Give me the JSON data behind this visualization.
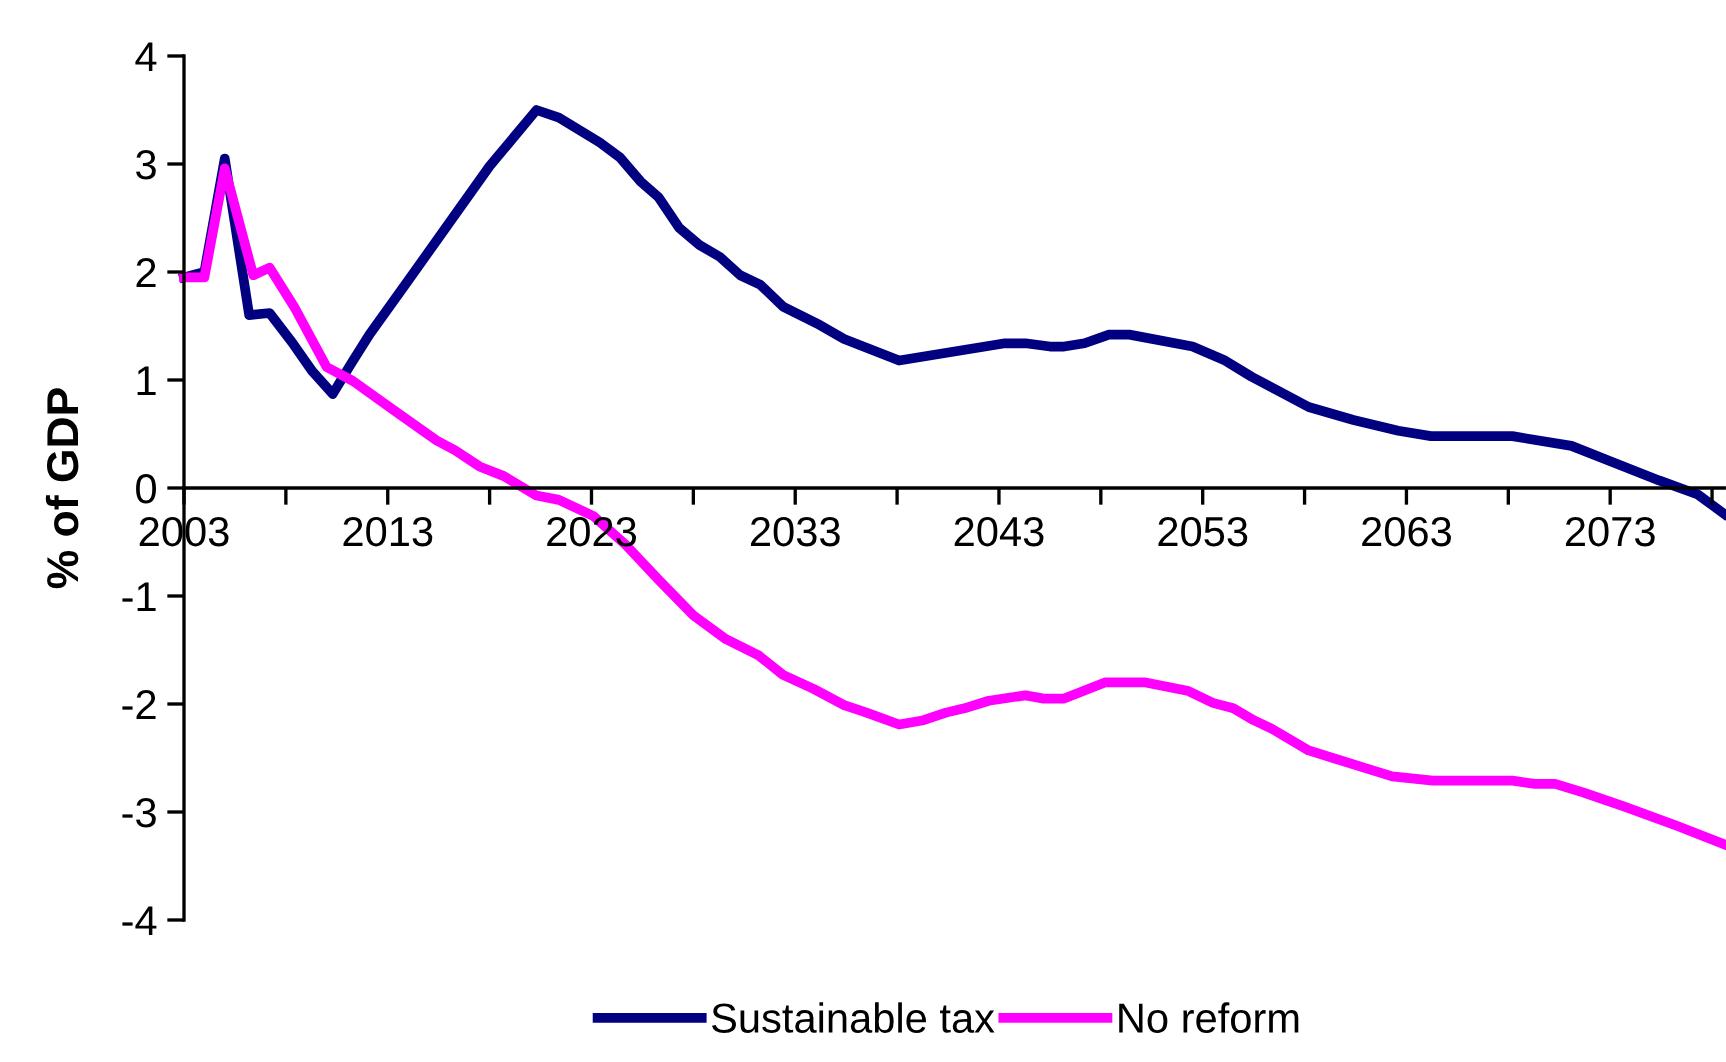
{
  "chart_data": {
    "type": "line",
    "ylabel": "% of GDP",
    "xlim": [
      2003,
      2078.6
    ],
    "xticks": [
      2003,
      {
        "value": 2008,
        "label": null
      },
      2013,
      {
        "value": 2018,
        "label": null
      },
      2023,
      {
        "value": 2028,
        "label": null
      },
      2033,
      {
        "value": 2038,
        "label": null
      },
      2043,
      {
        "value": 2048,
        "label": null
      },
      2053,
      {
        "value": 2058,
        "label": null
      },
      2063,
      {
        "value": 2068,
        "label": null
      },
      2073,
      {
        "value": 2078,
        "label": null
      }
    ],
    "ylim": [
      -4,
      4
    ],
    "yticks": [
      -4,
      -3,
      -2,
      -1,
      0,
      1,
      2,
      3,
      4
    ],
    "grid": false,
    "legend": "bottom",
    "marker": "none",
    "line_style": "solid",
    "series": [
      {
        "name": "Sustainable tax",
        "color": "#000080",
        "x": [
          2003,
          2004,
          2005,
          2006.2,
          2007.2,
          2008.3,
          2009.3,
          2010.3,
          2011.2,
          2012.1,
          2014,
          2016,
          2018,
          2020.3,
          2021.4,
          2023.4,
          2024.4,
          2025.4,
          2026.3,
          2027.3,
          2028.3,
          2029.3,
          2030.3,
          2031.3,
          2032.4,
          2034.2,
          2035.4,
          2038.1,
          2043.3,
          2044.3,
          2045.5,
          2046.2,
          2047.2,
          2048.4,
          2049.4,
          2052.5,
          2054.1,
          2055.4,
          2056.7,
          2058.2,
          2060.4,
          2062.6,
          2064.2,
          2068.2,
          2071.1,
          2073.1,
          2075.4,
          2077.3,
          2078.6
        ],
        "values": [
          1.95,
          2.0,
          3.05,
          1.6,
          1.62,
          1.35,
          1.08,
          0.87,
          1.15,
          1.42,
          1.92,
          2.45,
          2.98,
          3.5,
          3.43,
          3.2,
          3.06,
          2.84,
          2.69,
          2.41,
          2.25,
          2.14,
          1.97,
          1.88,
          1.68,
          1.51,
          1.38,
          1.18,
          1.34,
          1.34,
          1.31,
          1.31,
          1.34,
          1.42,
          1.42,
          1.31,
          1.18,
          1.03,
          0.9,
          0.75,
          0.63,
          0.53,
          0.48,
          0.48,
          0.39,
          0.24,
          0.07,
          -0.06,
          -0.24
        ]
      },
      {
        "name": "No reform",
        "color": "#ff00ff",
        "x": [
          2003,
          2004,
          2005,
          2006.4,
          2007.2,
          2008.4,
          2010.0,
          2011.3,
          2013.3,
          2015.4,
          2016.3,
          2017.5,
          2018.7,
          2020.3,
          2021.4,
          2023.1,
          2024.7,
          2026.3,
          2028.0,
          2029.6,
          2031.2,
          2032.4,
          2033.9,
          2035.4,
          2036.5,
          2038.1,
          2039.3,
          2040.4,
          2041.3,
          2042.5,
          2044.3,
          2045.2,
          2046.2,
          2048.2,
          2050.2,
          2052.3,
          2053.5,
          2054.5,
          2055.5,
          2056.4,
          2058.2,
          2060.4,
          2062.3,
          2064.3,
          2068.2,
          2069.3,
          2070.3,
          2071.7,
          2073.7,
          2076.3,
          2078.6
        ],
        "values": [
          1.95,
          1.95,
          2.96,
          1.97,
          2.04,
          1.68,
          1.12,
          0.99,
          0.72,
          0.44,
          0.35,
          0.2,
          0.11,
          -0.07,
          -0.11,
          -0.26,
          -0.53,
          -0.85,
          -1.18,
          -1.4,
          -1.55,
          -1.73,
          -1.86,
          -2.01,
          -2.08,
          -2.19,
          -2.15,
          -2.08,
          -2.04,
          -1.97,
          -1.92,
          -1.95,
          -1.95,
          -1.8,
          -1.8,
          -1.88,
          -1.99,
          -2.04,
          -2.15,
          -2.23,
          -2.43,
          -2.56,
          -2.67,
          -2.71,
          -2.71,
          -2.74,
          -2.74,
          -2.82,
          -2.95,
          -3.13,
          -3.3
        ]
      }
    ]
  }
}
